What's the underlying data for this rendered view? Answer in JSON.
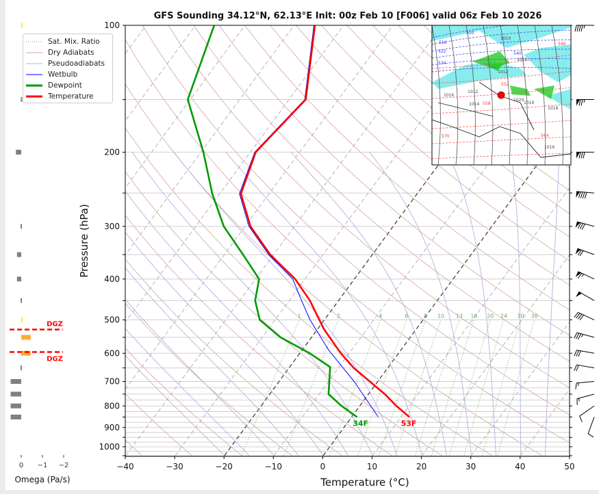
{
  "colors": {
    "temperature": "#ff0000",
    "dewpoint": "#009900",
    "wetbulb": "#0000ff",
    "dry": "#d9a0a0",
    "moist": "#a8a8e0",
    "mixing": "#66aa66",
    "isotherm": "#aaaaaa",
    "isotherm_key": "#333333",
    "dgz": "#ff0000",
    "omega_down": "#808080",
    "omega_up_weak": "#ffee00",
    "omega_up": "#ffaa33"
  },
  "chart_data": {
    "type": "line",
    "title": "GFS Sounding 34.12°N, 62.13°E Init: 00z Feb 10 [F006] valid 06z Feb 10 2026",
    "xlabel": "Temperature (°C)",
    "ylabel": "Pressure (hPa)",
    "xlim": [
      -40,
      50
    ],
    "ylim": [
      1050,
      100
    ],
    "xticks": [
      "−40",
      "−30",
      "−20",
      "−10",
      "0",
      "10",
      "20",
      "30",
      "40",
      "50"
    ],
    "xtick_values": [
      -40,
      -30,
      -20,
      -10,
      0,
      10,
      20,
      30,
      40,
      50
    ],
    "yticks": [
      "100",
      "200",
      "300",
      "400",
      "500",
      "600",
      "700",
      "800",
      "900",
      "1000"
    ],
    "ytick_values": [
      100,
      200,
      300,
      400,
      500,
      600,
      700,
      800,
      900,
      1000
    ],
    "legend": {
      "placement": "top-left",
      "entries": [
        "Sat. Mix. Ratio",
        "Dry Adiabats",
        "Pseudoadiabats",
        "Wetbulb",
        "Dewpoint",
        "Temperature"
      ]
    },
    "series": [
      {
        "name": "Temperature",
        "p": [
          850,
          800,
          750,
          650,
          600,
          525,
          450,
          400,
          350,
          300,
          251,
          200,
          150,
          100
        ],
        "t": [
          11.7,
          7.4,
          3.3,
          -6.9,
          -11.7,
          -18.8,
          -25.8,
          -32,
          -40.7,
          -48.9,
          -55.7,
          -58.9,
          -56.6,
          -65.8
        ]
      },
      {
        "name": "Dewpoint",
        "p": [
          850,
          800,
          750,
          647,
          600,
          550,
          500,
          450,
          400,
          350,
          300,
          251,
          200,
          150,
          100
        ],
        "t": [
          1.1,
          -3.7,
          -8.1,
          -11.8,
          -18,
          -26.3,
          -33.1,
          -36.9,
          -39.3,
          -46.2,
          -54.3,
          -61.5,
          -69.5,
          -80.5,
          -86.2
        ]
      },
      {
        "name": "Wetbulb",
        "p": [
          850,
          700,
          590,
          500,
          450,
          400,
          350,
          300,
          251,
          200,
          150,
          100
        ],
        "t": [
          5.4,
          -4.8,
          -14.6,
          -22.9,
          -27.5,
          -32.5,
          -41,
          -49.2,
          -56,
          -59.1,
          -56.8,
          -66
        ]
      }
    ],
    "surface_labels": {
      "dewpoint": "34F",
      "temperature": "53F"
    },
    "mixing_ratio_labels": [
      "1",
      "2",
      "4",
      "6",
      "8",
      "10",
      "13",
      "16",
      "20",
      "24",
      "30",
      "36"
    ],
    "mixing_ratio_values": [
      1,
      2,
      4,
      6,
      8,
      10,
      13,
      16,
      20,
      24,
      30,
      36
    ],
    "omega": {
      "xlabel": "Omega (Pa/s)",
      "xticks": [
        "0",
        "−1",
        "−2"
      ],
      "xtick_values": [
        0,
        -1,
        -2
      ],
      "p": [
        100,
        150,
        200,
        300,
        350,
        400,
        450,
        500,
        550,
        600,
        650,
        700,
        750,
        800,
        850
      ],
      "values": [
        -0.05,
        0.02,
        0.25,
        0.03,
        0.2,
        0.2,
        0.03,
        -0.05,
        -0.45,
        -0.45,
        0.03,
        0.5,
        0.5,
        0.5,
        0.5
      ]
    },
    "dgz": {
      "label": "DGZ",
      "p_top": 527,
      "p_bottom": 596
    },
    "wind_barbs": {
      "p": [
        100,
        150,
        200,
        250,
        300,
        350,
        400,
        450,
        500,
        550,
        600,
        650,
        700,
        750,
        800,
        850
      ],
      "speed_kt": [
        45,
        75,
        80,
        90,
        80,
        70,
        65,
        50,
        40,
        35,
        30,
        20,
        15,
        15,
        10,
        10
      ],
      "direction_deg": [
        270,
        270,
        270,
        275,
        285,
        290,
        295,
        300,
        295,
        285,
        280,
        280,
        265,
        255,
        235,
        200
      ]
    }
  },
  "inset_map": {
    "labels": [
      "510",
      "516",
      "522",
      "534",
      "540",
      "546",
      "552",
      "558",
      "564",
      "570",
      "1010",
      "1012",
      "1012",
      "1014",
      "1014",
      "1016",
      "1016",
      "1016",
      "1018",
      "1020"
    ]
  }
}
